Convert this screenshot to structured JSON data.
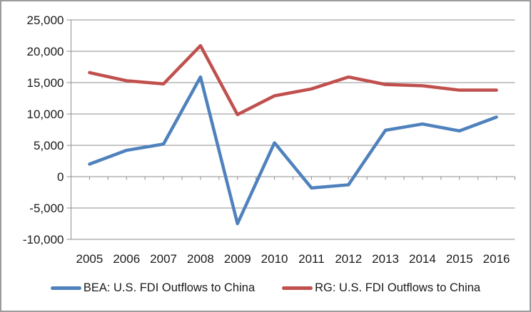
{
  "chart_data": {
    "type": "line",
    "title": "",
    "xlabel": "",
    "ylabel": "",
    "categories": [
      "2005",
      "2006",
      "2007",
      "2008",
      "2009",
      "2010",
      "2011",
      "2012",
      "2013",
      "2014",
      "2015",
      "2016"
    ],
    "series": [
      {
        "name": "BEA: U.S. FDI Outflows to China",
        "color": "#4F81BD",
        "values": [
          2000,
          4200,
          5200,
          15900,
          -7500,
          5400,
          -1800,
          -1300,
          7400,
          8400,
          7300,
          9500
        ]
      },
      {
        "name": "RG: U.S. FDI Outflows to China",
        "color": "#C0504D",
        "values": [
          16600,
          15300,
          14800,
          20900,
          9900,
          12900,
          14000,
          15900,
          14700,
          14500,
          13800,
          13800
        ]
      }
    ],
    "ylim": [
      -10000,
      25000
    ],
    "ytick_step": 5000,
    "ytick_labels": [
      "25,000",
      "20,000",
      "15,000",
      "10,000",
      "5,000",
      "0",
      "-5,000",
      "-10,000"
    ],
    "grid": true,
    "legend_position": "bottom"
  },
  "style": {
    "grid_color": "#8e8e8e",
    "axis_color": "#8e8e8e",
    "text_color": "#1a1a1a",
    "frame_border_color": "#9c9c9c",
    "background": "#ffffff",
    "line_width": 4.5,
    "tick_label_font_size": 17
  }
}
